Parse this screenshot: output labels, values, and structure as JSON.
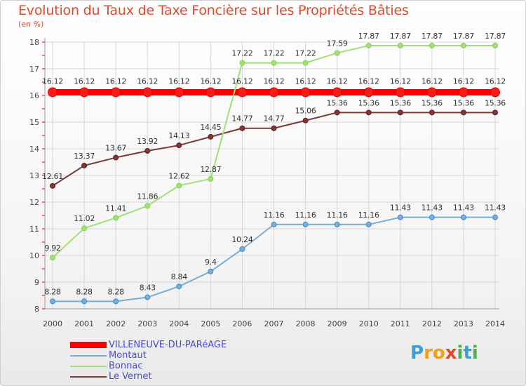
{
  "header": {
    "title": "Evolution du Taux de Taxe Foncière sur les Propriétés Bâties",
    "unit": "(en %)"
  },
  "brand": {
    "letters": [
      "P",
      "r",
      "o",
      "x",
      "i",
      "t",
      "i"
    ],
    "colors": [
      "#3aa0d8",
      "#f0a020",
      "#f0a020",
      "#e04a2a",
      "#4ab04a",
      "#3aa0d8",
      "#4ab04a"
    ]
  },
  "chart_data": {
    "type": "line",
    "title": "Evolution du Taux de Taxe Foncière sur les Propriétés Bâties",
    "ylabel": "(en %)",
    "xlabel": "",
    "x": [
      "2000",
      "2001",
      "2002",
      "2003",
      "2004",
      "2005",
      "2006",
      "2007",
      "2008",
      "2009",
      "2010",
      "2011",
      "2012",
      "2013",
      "2014"
    ],
    "ylim": [
      8,
      18
    ],
    "yticks": [
      "8",
      "9",
      "10",
      "11",
      "12",
      "13",
      "14",
      "15",
      "16",
      "17",
      "18"
    ],
    "legend_position": "bottom-left",
    "series": [
      {
        "name": "VILLENEUVE-DU-PARéAGE",
        "color": "#ff0000",
        "marker": "#e00000",
        "width": 9,
        "values": [
          16.12,
          16.12,
          16.12,
          16.12,
          16.12,
          16.12,
          16.12,
          16.12,
          16.12,
          16.12,
          16.12,
          16.12,
          16.12,
          16.12,
          16.12
        ],
        "labels": [
          "16.12",
          "16.12",
          "16.12",
          "16.12",
          "16.12",
          "16.12",
          "16.12",
          "16.12",
          "16.12",
          "16.12",
          "16.12",
          "16.12",
          "16.12",
          "16.12",
          "16.12"
        ]
      },
      {
        "name": "Montaut",
        "color": "#7aaed6",
        "marker": "#3f8ccf",
        "width": 2,
        "values": [
          8.28,
          8.28,
          8.28,
          8.43,
          8.84,
          9.4,
          10.24,
          11.16,
          11.16,
          11.16,
          11.16,
          11.43,
          11.43,
          11.43,
          11.43
        ],
        "labels": [
          "8.28",
          "8.28",
          "8.28",
          "8.43",
          "8.84",
          "9.4",
          "10.24",
          "11.16",
          "11.16",
          "11.16",
          "11.16",
          "11.43",
          "11.43",
          "11.43",
          "11.43"
        ]
      },
      {
        "name": "Bonnac",
        "color": "#a0e07a",
        "marker": "#86d24a",
        "width": 2,
        "values": [
          9.92,
          11.02,
          11.41,
          11.86,
          12.62,
          12.87,
          17.22,
          17.22,
          17.22,
          17.59,
          17.87,
          17.87,
          17.87,
          17.87,
          17.87
        ],
        "labels": [
          "9.92",
          "11.02",
          "11.41",
          "11.86",
          "12.62",
          "12.87",
          "17.22",
          "17.22",
          "17.22",
          "17.59",
          "17.87",
          "17.87",
          "17.87",
          "17.87",
          "17.87"
        ]
      },
      {
        "name": "Le Vernet",
        "color": "#7a3a3a",
        "marker": "#6a1a1a",
        "width": 2,
        "values": [
          12.61,
          13.37,
          13.67,
          13.92,
          14.13,
          14.45,
          14.77,
          14.77,
          15.06,
          15.36,
          15.36,
          15.36,
          15.36,
          15.36,
          15.36
        ],
        "labels": [
          "12.61",
          "13.37",
          "13.67",
          "13.92",
          "14.13",
          "14.45",
          "14.77",
          "14.77",
          "15.06",
          "15.36",
          "15.36",
          "15.36",
          "15.36",
          "15.36",
          "15.36"
        ]
      }
    ]
  }
}
